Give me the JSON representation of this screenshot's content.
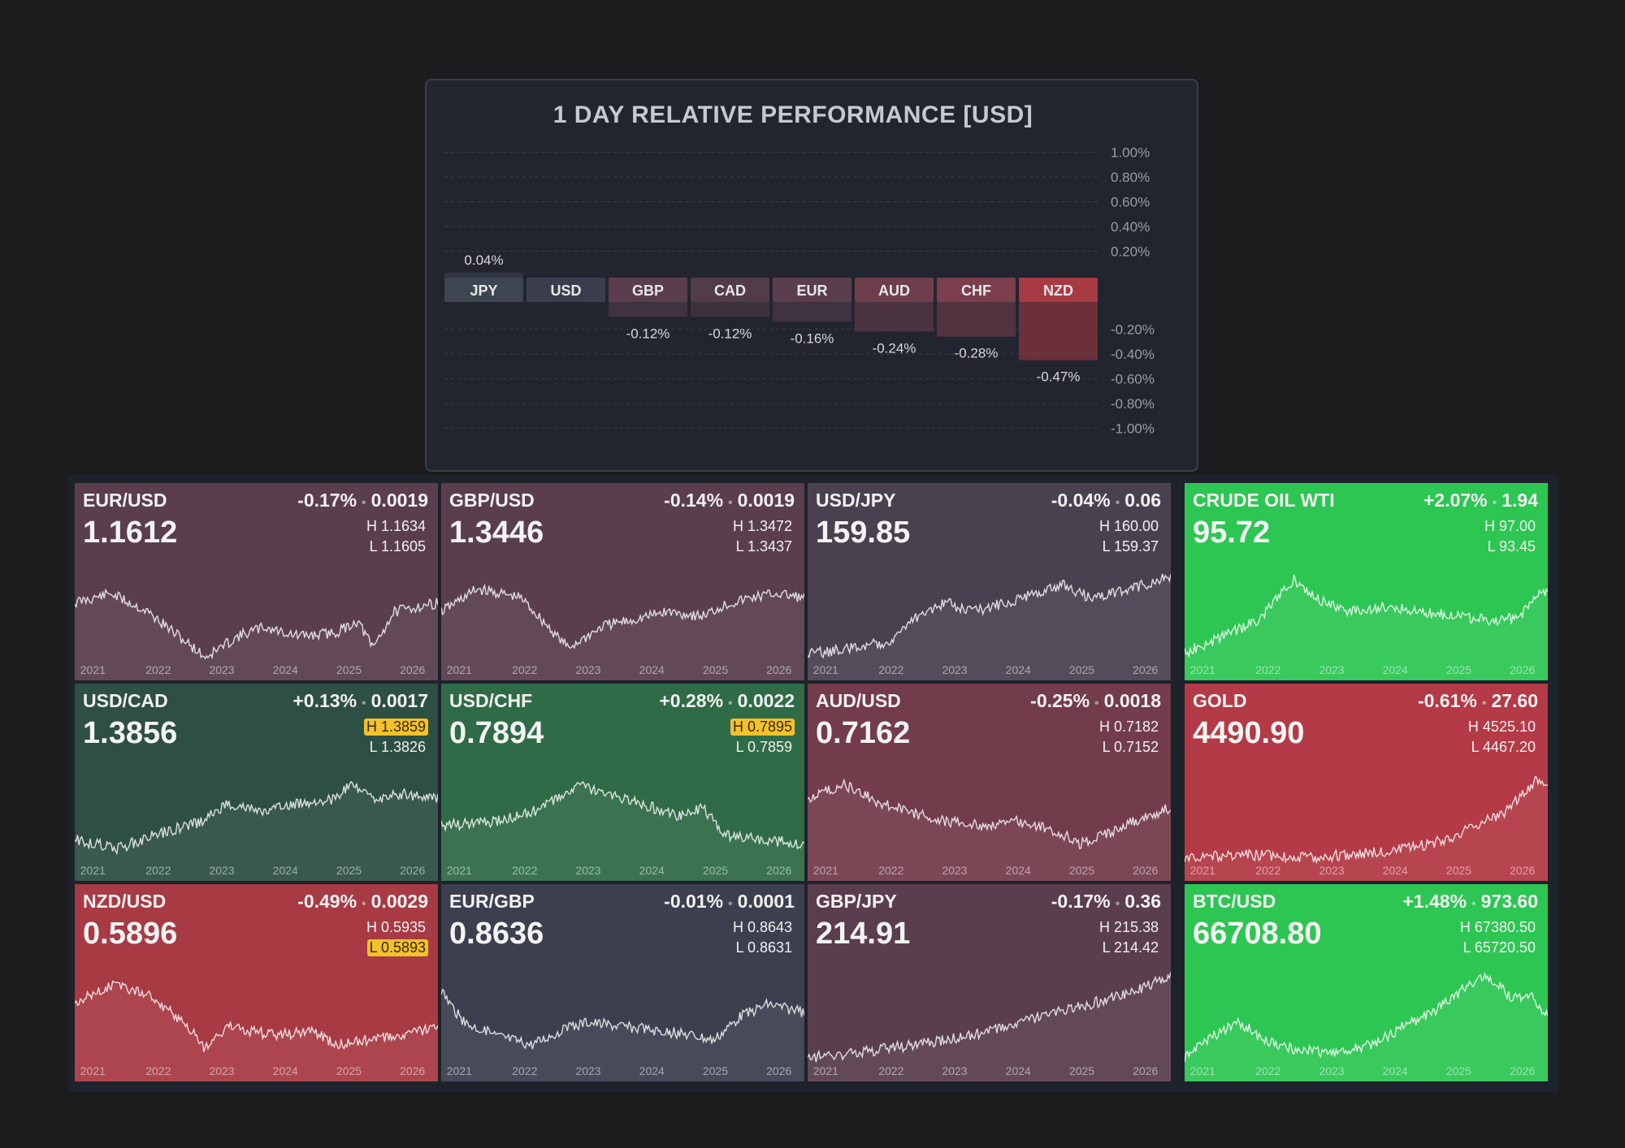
{
  "performance": {
    "title": "1 DAY RELATIVE PERFORMANCE  [USD]",
    "y_ticks": [
      "1.00%",
      "0.80%",
      "0.60%",
      "0.40%",
      "0.20%",
      "-0.20%",
      "-0.40%",
      "-0.60%",
      "-0.80%",
      "-1.00%"
    ],
    "chart_data": {
      "type": "bar",
      "title": "1 DAY RELATIVE PERFORMANCE  [USD]",
      "categories": [
        "JPY",
        "USD",
        "GBP",
        "CAD",
        "EUR",
        "AUD",
        "CHF",
        "NZD"
      ],
      "values": [
        0.04,
        0.0,
        -0.12,
        -0.12,
        -0.16,
        -0.24,
        -0.28,
        -0.47
      ],
      "value_labels": [
        "0.04%",
        "",
        "-0.12%",
        "-0.12%",
        "-0.16%",
        "-0.24%",
        "-0.28%",
        "-0.47%"
      ],
      "ylim": [
        -1.0,
        1.0
      ],
      "grid": true
    },
    "colors": [
      "#3d4550",
      "#3a3e4c",
      "#5a3e4e",
      "#533c4a",
      "#5a3e4e",
      "#6e3e4c",
      "#7a3e4c",
      "#a83a44"
    ]
  },
  "years": [
    "2021",
    "2022",
    "2023",
    "2024",
    "2025",
    "2026"
  ],
  "tiles": [
    {
      "symbol": "EUR/USD",
      "pct": "-0.17%",
      "chg": "0.0019",
      "price": "1.1612",
      "high": "H 1.1634",
      "low": "L 1.1605",
      "bg": "#5a3e4e",
      "high_hl": false,
      "low_hl": false,
      "shape": "eurusd"
    },
    {
      "symbol": "GBP/USD",
      "pct": "-0.14%",
      "chg": "0.0019",
      "price": "1.3446",
      "high": "H 1.3472",
      "low": "L 1.3437",
      "bg": "#5a3e4e",
      "high_hl": false,
      "low_hl": false,
      "shape": "gbpusd"
    },
    {
      "symbol": "USD/JPY",
      "pct": "-0.04%",
      "chg": "0.06",
      "price": "159.85",
      "high": "H 160.00",
      "low": "L 159.37",
      "bg": "#4a4150",
      "high_hl": false,
      "low_hl": false,
      "shape": "usdjpy"
    },
    {
      "symbol": "CRUDE OIL WTI",
      "pct": "+2.07%",
      "chg": "1.94",
      "price": "95.72",
      "high": "H 97.00",
      "low": "L 93.45",
      "bg": "#2dc653",
      "high_hl": false,
      "low_hl": false,
      "shape": "oil"
    },
    {
      "symbol": "USD/CAD",
      "pct": "+0.13%",
      "chg": "0.0017",
      "price": "1.3856",
      "high": "H 1.3859",
      "low": "L 1.3826",
      "bg": "#2e4f43",
      "high_hl": true,
      "low_hl": false,
      "shape": "usdcad"
    },
    {
      "symbol": "USD/CHF",
      "pct": "+0.28%",
      "chg": "0.0022",
      "price": "0.7894",
      "high": "H 0.7895",
      "low": "L 0.7859",
      "bg": "#2f6b47",
      "high_hl": true,
      "low_hl": false,
      "shape": "usdchf"
    },
    {
      "symbol": "AUD/USD",
      "pct": "-0.25%",
      "chg": "0.0018",
      "price": "0.7162",
      "high": "H 0.7182",
      "low": "L 0.7152",
      "bg": "#733c4b",
      "high_hl": false,
      "low_hl": false,
      "shape": "audusd"
    },
    {
      "symbol": "GOLD",
      "pct": "-0.61%",
      "chg": "27.60",
      "price": "4490.90",
      "high": "H 4525.10",
      "low": "L 4467.20",
      "bg": "#b33a46",
      "high_hl": false,
      "low_hl": false,
      "shape": "gold"
    },
    {
      "symbol": "NZD/USD",
      "pct": "-0.49%",
      "chg": "0.0029",
      "price": "0.5896",
      "high": "H 0.5935",
      "low": "L 0.5893",
      "bg": "#a83a44",
      "high_hl": false,
      "low_hl": true,
      "shape": "nzdusd"
    },
    {
      "symbol": "EUR/GBP",
      "pct": "-0.01%",
      "chg": "0.0001",
      "price": "0.8636",
      "high": "H 0.8643",
      "low": "L 0.8631",
      "bg": "#3c3f4e",
      "high_hl": false,
      "low_hl": false,
      "shape": "eurgbp"
    },
    {
      "symbol": "GBP/JPY",
      "pct": "-0.17%",
      "chg": "0.36",
      "price": "214.91",
      "high": "H 215.38",
      "low": "L 214.42",
      "bg": "#5a3e4e",
      "high_hl": false,
      "low_hl": false,
      "shape": "gbpjpy"
    },
    {
      "symbol": "BTC/USD",
      "pct": "+1.48%",
      "chg": "973.60",
      "price": "66708.80",
      "high": "H 67380.50",
      "low": "L 65720.50",
      "bg": "#2dc653",
      "high_hl": false,
      "low_hl": false,
      "shape": "btc"
    }
  ]
}
